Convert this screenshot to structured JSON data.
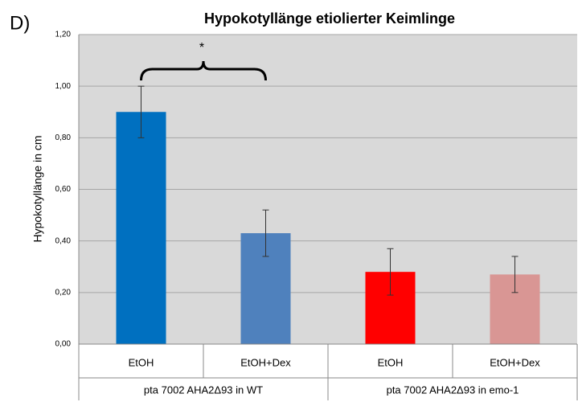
{
  "chart_data": {
    "type": "bar",
    "panel_label": "D)",
    "title": "Hypokotyllänge etiolierter Keimlinge",
    "y_label": "Hypokotyllänge in cm",
    "categories": [
      "EtOH",
      "EtOH+Dex",
      "EtOH",
      "EtOH+Dex"
    ],
    "groups": [
      "pta 7002 AHA2Δ93 in WT",
      "pta 7002 AHA2Δ93 in emo-1"
    ],
    "values": [
      0.9,
      0.43,
      0.28,
      0.27
    ],
    "errors": [
      0.1,
      0.09,
      0.09,
      0.07
    ],
    "colors": [
      "#0070c0",
      "#4f81bd",
      "#ff0000",
      "#d99694"
    ],
    "annotation": "*",
    "ylim": [
      0,
      1.2
    ],
    "yticks": [
      {
        "value": 0,
        "label": "0,00"
      },
      {
        "value": 0.2,
        "label": "0,20"
      },
      {
        "value": 0.4,
        "label": "0,40"
      },
      {
        "value": 0.6,
        "label": "0,60"
      },
      {
        "value": 0.8,
        "label": "0,80"
      },
      {
        "value": 1.0,
        "label": "1,00"
      },
      {
        "value": 1.2,
        "label": "1,20"
      }
    ],
    "grid": true
  }
}
